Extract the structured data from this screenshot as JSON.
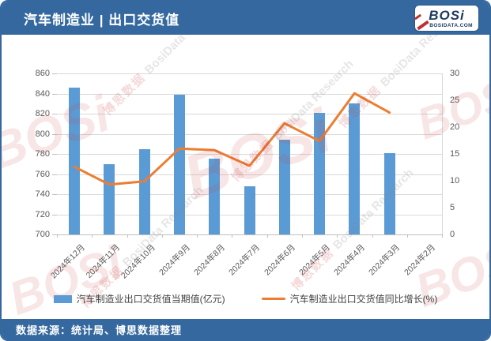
{
  "header": {
    "title": "汽车制造业 | 出口交货值",
    "logo": {
      "name": "BOSi",
      "site": "BOSIDATA.COM"
    }
  },
  "footer": {
    "source": "数据来源：统计局、博思数据整理"
  },
  "watermark": {
    "text_cn": "博思数据",
    "text_en": "BosiData Research",
    "logo": "BOSi"
  },
  "colors": {
    "theme_blue": "#34689E",
    "bar_blue": "#5B9BD5",
    "line_orange": "#ED7D31",
    "logo_red": "#C22F2F"
  },
  "chart_data": {
    "type": "bar+line",
    "title": "汽车制造业 | 出口交货值",
    "categories": [
      "2024年12月",
      "2024年11月",
      "2024年10月",
      "2024年9月",
      "2024年8月",
      "2024年7月",
      "2024年6月",
      "2024年5月",
      "2024年4月",
      "2024年3月",
      "2024年2月"
    ],
    "series": [
      {
        "name": "汽车制造业出口交货值当期值(亿元)",
        "type": "bar",
        "axis": "left",
        "color": "#5B9BD5",
        "values": [
          846,
          770,
          785,
          839,
          775,
          748,
          794,
          821,
          830,
          781,
          null
        ]
      },
      {
        "name": "汽车制造业出口交货值同比增长(%)",
        "type": "line",
        "axis": "right",
        "color": "#ED7D31",
        "values": [
          12.6,
          9.3,
          9.9,
          16,
          15.7,
          12.8,
          20.7,
          17.4,
          26.3,
          22.7,
          null
        ]
      }
    ],
    "left_axis": {
      "min": 700,
      "max": 860,
      "step": 20
    },
    "right_axis": {
      "min": 0,
      "max": 30,
      "step": 5
    },
    "grid": true,
    "legend_position": "bottom"
  }
}
